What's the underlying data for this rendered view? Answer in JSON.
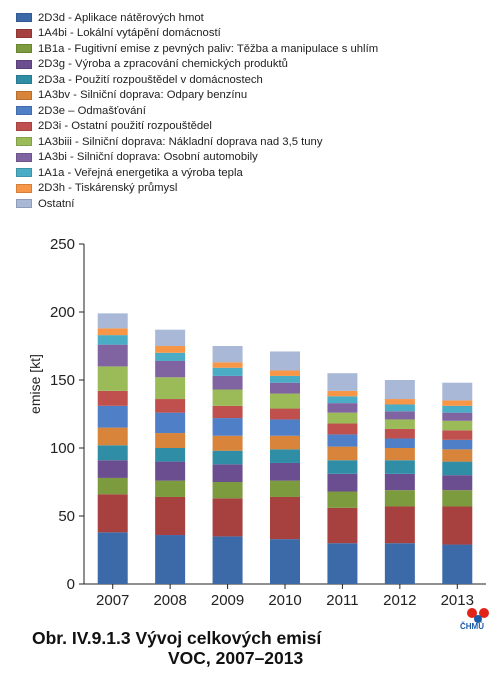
{
  "chart_data": {
    "type": "bar",
    "stacked": true,
    "title": "",
    "xlabel": "",
    "ylabel": "emise [kt]",
    "ylim": [
      0,
      250
    ],
    "yticks": [
      0,
      50,
      100,
      150,
      200,
      250
    ],
    "grid": false,
    "legend_position": "top-left",
    "categories": [
      "2007",
      "2008",
      "2009",
      "2010",
      "2011",
      "2012",
      "2013"
    ],
    "series": [
      {
        "name": "2D3d - Aplikace nátěrových hmot",
        "color": "#3c6aa9",
        "values": [
          38,
          36,
          35,
          33,
          30,
          30,
          29
        ]
      },
      {
        "name": "1A4bi - Lokální vytápění domácností",
        "color": "#a6413f",
        "values": [
          28,
          28,
          28,
          31,
          26,
          27,
          28
        ]
      },
      {
        "name": "1B1a - Fugitivní emise z pevných paliv: Těžba a manipulace s uhlím",
        "color": "#7c9a3e",
        "values": [
          12,
          12,
          12,
          12,
          12,
          12,
          12
        ]
      },
      {
        "name": "2D3g - Výroba a zpracování chemických produktů",
        "color": "#6a4e8f",
        "values": [
          13,
          14,
          13,
          13,
          13,
          12,
          11
        ]
      },
      {
        "name": "2D3a - Použití rozpouštědel v domácnostech",
        "color": "#2f8ea6",
        "values": [
          11,
          10,
          10,
          10,
          10,
          10,
          10
        ]
      },
      {
        "name": "1A3bv - Silniční doprava: Odpary benzínu",
        "color": "#d8843a",
        "values": [
          13,
          11,
          11,
          10,
          10,
          9,
          9
        ]
      },
      {
        "name": "2D3e – Odmašťování",
        "color": "#4f7fc7",
        "values": [
          16,
          15,
          13,
          12,
          9,
          7,
          7
        ]
      },
      {
        "name": "2D3i - Ostatní použití rozpouštědel",
        "color": "#c0504d",
        "values": [
          11,
          10,
          9,
          8,
          8,
          7,
          7
        ]
      },
      {
        "name": "1A3biii - Silniční doprava: Nákladní doprava nad 3,5 tuny",
        "color": "#9bbb59",
        "values": [
          18,
          16,
          12,
          11,
          8,
          7,
          7
        ]
      },
      {
        "name": "1A3bi - Silniční doprava: Osobní automobily",
        "color": "#8064a2",
        "values": [
          16,
          12,
          10,
          8,
          7,
          6,
          6
        ]
      },
      {
        "name": "1A1a - Veřejná energetika a výroba tepla",
        "color": "#4bacc6",
        "values": [
          7,
          6,
          6,
          5,
          5,
          5,
          5
        ]
      },
      {
        "name": "2D3h - Tiskárenský průmysl",
        "color": "#f79646",
        "values": [
          5,
          5,
          4,
          4,
          4,
          4,
          4
        ]
      },
      {
        "name": "Ostatní",
        "color": "#aab8d8",
        "values": [
          11,
          12,
          12,
          14,
          13,
          14,
          13
        ]
      }
    ]
  },
  "caption": {
    "line1": "Obr. IV.9.1.3  Vývoj celkových emisí",
    "line2": "VOC, 2007–2013"
  },
  "logo": {
    "text": "ČHMÚ",
    "icon": "chmu-logo-icon"
  }
}
